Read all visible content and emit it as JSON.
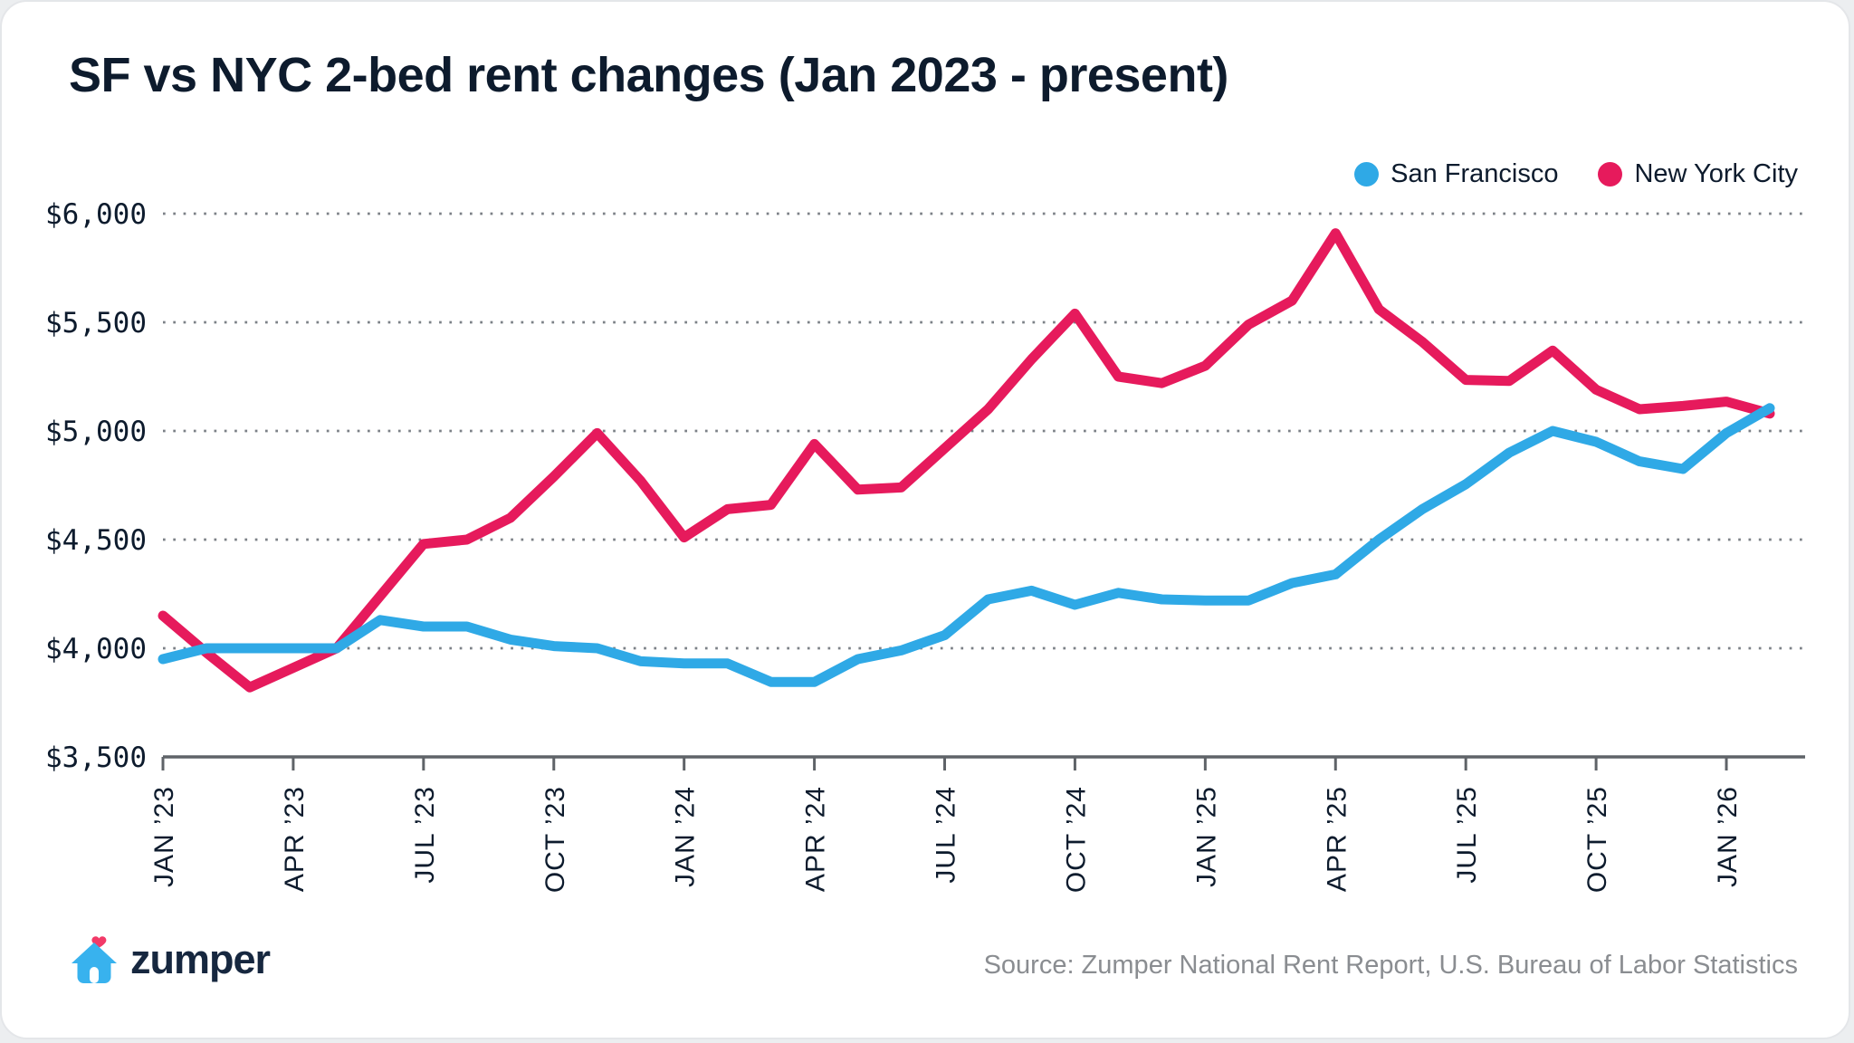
{
  "header": {
    "title": "SF vs NYC 2-bed rent changes (Jan 2023 - present)"
  },
  "legend": {
    "items": [
      {
        "label": "San Francisco",
        "color": "#2fa9e6"
      },
      {
        "label": "New York City",
        "color": "#e61a5c"
      }
    ]
  },
  "footer": {
    "brand": "zumper",
    "source": "Source: Zumper National Rent Report, U.S. Bureau of Labor Statistics"
  },
  "chart_data": {
    "type": "line",
    "title": "SF vs NYC 2-bed rent changes (Jan 2023 - present)",
    "x": [
      "Jan 2023",
      "Feb 2023",
      "Mar 2023",
      "Apr 2023",
      "May 2023",
      "Jun 2023",
      "Jul 2023",
      "Aug 2023",
      "Sep 2023",
      "Oct 2023",
      "Nov 2023",
      "Dec 2023",
      "Jan 2024",
      "Feb 2024",
      "Mar 2024",
      "Apr 2024",
      "May 2024",
      "Jun 2024",
      "Jul 2024",
      "Aug 2024",
      "Sep 2024",
      "Oct 2024",
      "Nov 2024",
      "Dec 2024",
      "Jan 2025",
      "Feb 2025",
      "Mar 2025",
      "Apr 2025",
      "May 2025",
      "Jun 2025",
      "Jul 2025",
      "Aug 2025",
      "Sep 2025",
      "Oct 2025",
      "Nov 2025",
      "Dec 2025",
      "Jan 2026",
      "Feb 2026"
    ],
    "x_tick_labels": [
      "JAN ’23",
      "APR ’23",
      "JUL ’23",
      "OCT ’23",
      "JAN ’24",
      "APR ’24",
      "JUL ’24",
      "OCT ’24",
      "JAN ’25",
      "APR ’25",
      "JUL ’25",
      "OCT ’25",
      "JAN ’26"
    ],
    "x_tick_every": 3,
    "y_ticks": [
      3500,
      4000,
      4500,
      5000,
      5500,
      6000
    ],
    "y_tick_labels": [
      "$3,500",
      "$4,000",
      "$4,500",
      "$5,000",
      "$5,500",
      "$6,000"
    ],
    "ylim": [
      3500,
      6000
    ],
    "grid": "dotted-horizontal",
    "legend_position": "top-right",
    "series": [
      {
        "name": "San Francisco",
        "color": "#2fa9e6",
        "values": [
          3950,
          4000,
          4000,
          4000,
          4000,
          4130,
          4100,
          4100,
          4040,
          4010,
          4000,
          3940,
          3930,
          3930,
          3845,
          3845,
          3950,
          3990,
          4060,
          4225,
          4265,
          4200,
          4255,
          4225,
          4220,
          4220,
          4300,
          4340,
          4500,
          4640,
          4755,
          4900,
          5000,
          4950,
          4860,
          4825,
          4990,
          5105
        ]
      },
      {
        "name": "New York City",
        "color": "#e61a5c",
        "values": [
          4150,
          3980,
          3820,
          3910,
          4000,
          4240,
          4480,
          4500,
          4600,
          4790,
          4990,
          4770,
          4510,
          4640,
          4660,
          4940,
          4730,
          4740,
          4920,
          5100,
          5330,
          5540,
          5250,
          5220,
          5300,
          5490,
          5600,
          5910,
          5560,
          5410,
          5235,
          5230,
          5370,
          5190,
          5100,
          5115,
          5135,
          5080
        ]
      }
    ]
  }
}
